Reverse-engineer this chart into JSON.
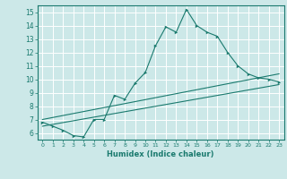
{
  "title": "",
  "xlabel": "Humidex (Indice chaleur)",
  "bg_color": "#cce8e8",
  "grid_color": "#ffffff",
  "line_color": "#1a7a6e",
  "xlim": [
    -0.5,
    23.5
  ],
  "ylim": [
    5.5,
    15.5
  ],
  "xticks": [
    0,
    1,
    2,
    3,
    4,
    5,
    6,
    7,
    8,
    9,
    10,
    11,
    12,
    13,
    14,
    15,
    16,
    17,
    18,
    19,
    20,
    21,
    22,
    23
  ],
  "yticks": [
    6,
    7,
    8,
    9,
    10,
    11,
    12,
    13,
    14,
    15
  ],
  "series1_x": [
    0,
    1,
    2,
    3,
    4,
    5,
    6,
    7,
    8,
    9,
    10,
    11,
    12,
    13,
    14,
    15,
    16,
    17,
    18,
    19,
    20,
    21,
    22,
    23
  ],
  "series1_y": [
    6.8,
    6.5,
    6.2,
    5.8,
    5.7,
    7.0,
    7.0,
    8.8,
    8.5,
    9.7,
    10.5,
    12.5,
    13.9,
    13.5,
    15.2,
    14.0,
    13.5,
    13.2,
    12.0,
    11.0,
    10.4,
    10.1,
    10.0,
    9.8
  ],
  "series2_x": [
    0,
    23
  ],
  "series2_y": [
    6.5,
    9.6
  ],
  "series3_x": [
    0,
    23
  ],
  "series3_y": [
    7.0,
    10.4
  ]
}
